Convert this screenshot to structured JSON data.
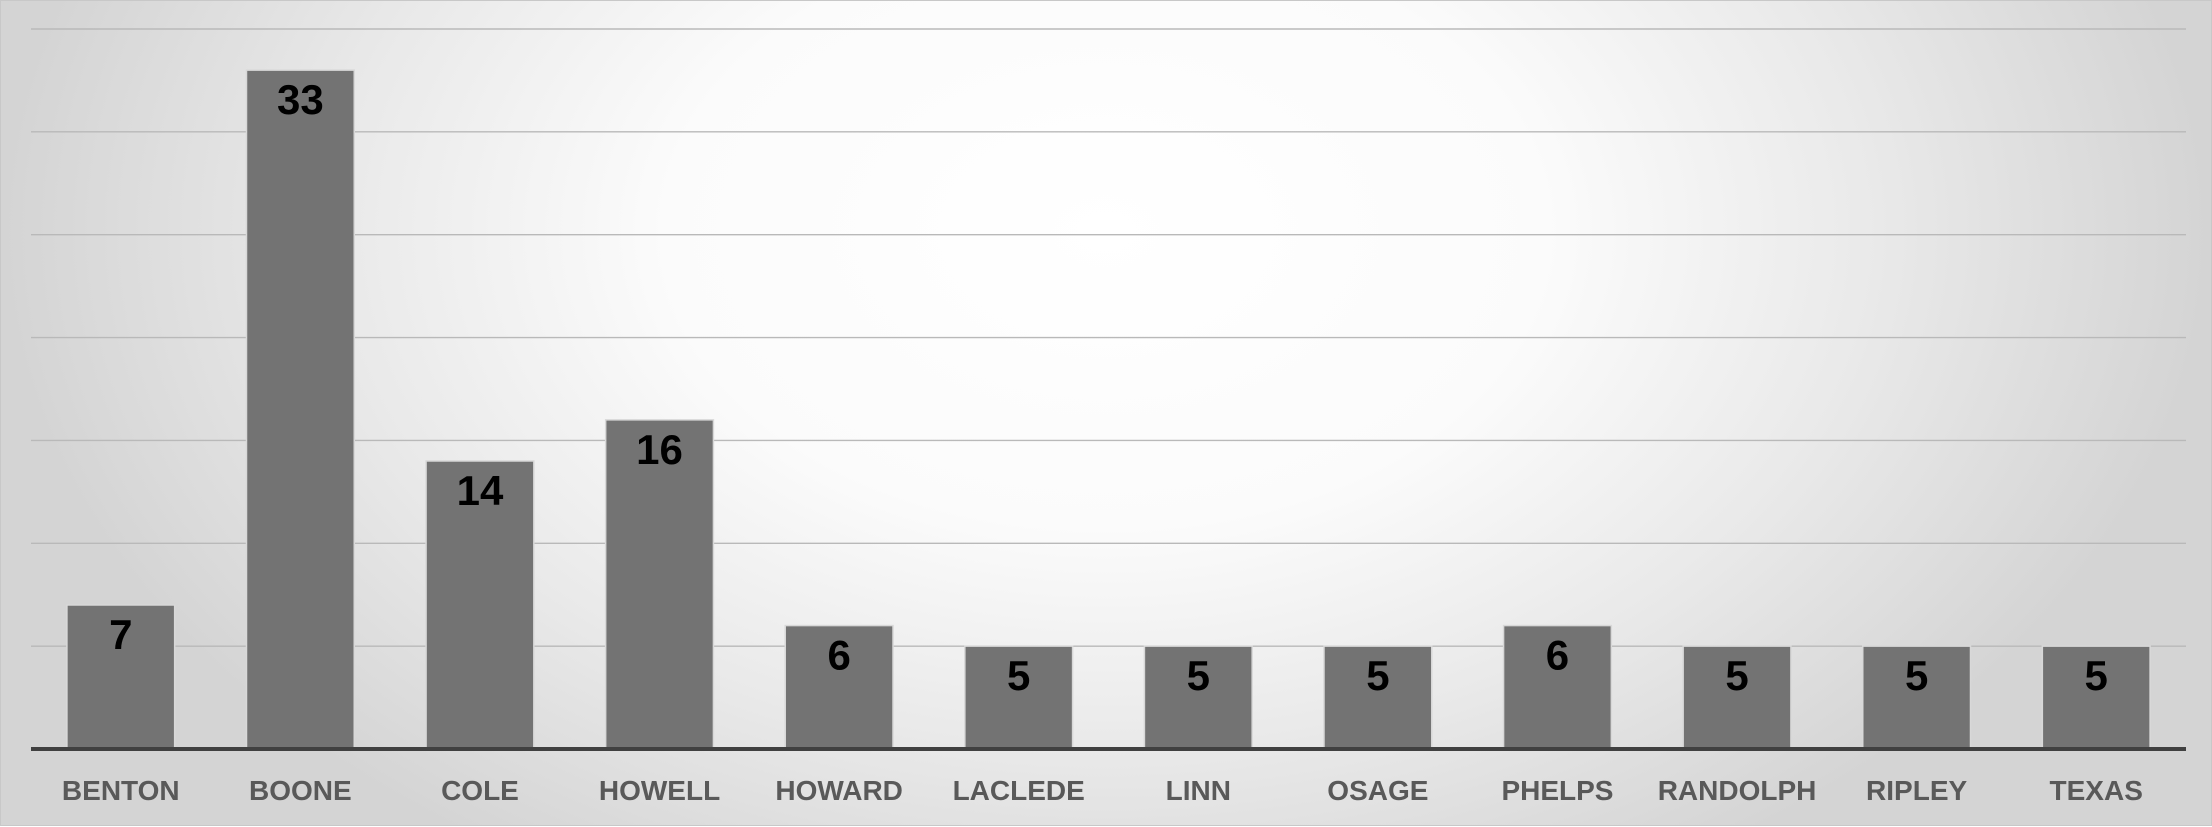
{
  "chart_data": {
    "type": "bar",
    "title": "",
    "xlabel": "",
    "ylabel": "",
    "categories": [
      "BENTON",
      "BOONE",
      "COLE",
      "HOWELL",
      "HOWARD",
      "LACLEDE",
      "LINN",
      "OSAGE",
      "PHELPS",
      "RANDOLPH",
      "RIPLEY",
      "TEXAS"
    ],
    "series": [
      {
        "values": [
          7,
          33,
          14,
          16,
          6,
          5,
          5,
          5,
          6,
          5,
          5,
          5
        ],
        "color": "#737373"
      }
    ],
    "ylim": [
      0,
      35
    ],
    "y_major_step": 5,
    "grid": true,
    "y_tick_labels_shown": false,
    "legend": "none",
    "data_labels": "inside-end",
    "colors": {
      "bar": "#737373",
      "gridline": "#b9b9b9",
      "axis": "#404040",
      "bar_label": "#000000",
      "tick_label": "#595959"
    }
  }
}
